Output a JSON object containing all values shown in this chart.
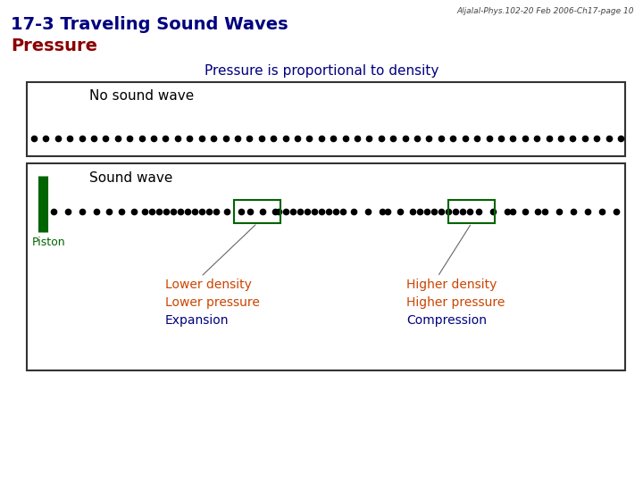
{
  "title_line1": "17-3 Traveling Sound Waves",
  "title_line2": "Pressure",
  "header_text": "Aljalal-Phys.102-20 Feb 2006-Ch17-page 10",
  "subtitle": "Pressure is proportional to density",
  "no_sound_label": "No sound wave",
  "sound_wave_label": "Sound wave",
  "piston_label": "Piston",
  "lower_density": "Lower density",
  "lower_pressure": "Lower pressure",
  "expansion": "Expansion",
  "higher_density": "Higher density",
  "higher_pressure": "Higher pressure",
  "compression": "Compression",
  "bg_color": "#ffffff",
  "title_color": "#000080",
  "title2_color": "#8b0000",
  "subtitle_color": "#000080",
  "orange_text_color": "#cc4400",
  "blue_text_color": "#000080",
  "dot_color": "#000000",
  "piston_color": "#006400",
  "box_color": "#006400"
}
